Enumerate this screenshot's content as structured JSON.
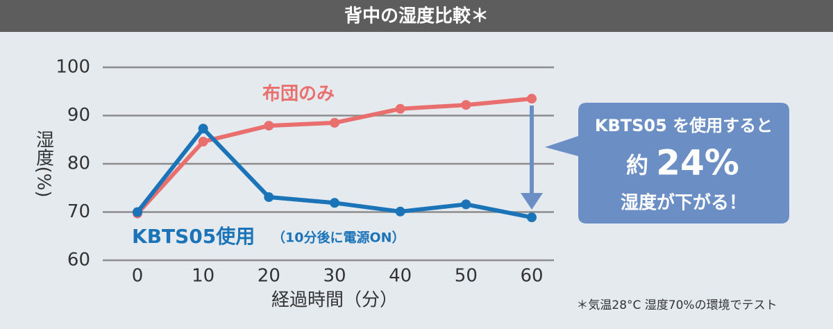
{
  "chart_data": {
    "type": "line",
    "title": "背中の湿度比較＊",
    "ylabel": "湿度(%)",
    "xlabel": "経過時間（分）",
    "x": [
      0,
      10,
      20,
      30,
      40,
      50,
      60
    ],
    "xlim": [
      0,
      60
    ],
    "xticks": [
      0,
      10,
      20,
      30,
      40,
      50,
      60
    ],
    "ylim": [
      60,
      100
    ],
    "yticks": [
      60,
      70,
      80,
      90,
      100
    ],
    "grid": true,
    "series": [
      {
        "name": "布団のみ",
        "color": "#e96f6f",
        "values": [
          69.7,
          84.6,
          87.9,
          88.5,
          91.4,
          92.2,
          93.5
        ]
      },
      {
        "name": "KBTS05使用",
        "color": "#1c74b8",
        "values": [
          70.0,
          87.3,
          73.1,
          71.9,
          70.1,
          71.6,
          68.9
        ]
      }
    ],
    "series_note": "（10分後に電源ON）",
    "callout": [
      "KBTS05 を使用すると",
      "約",
      "24%",
      "湿度が下がる！"
    ],
    "footnote": "＊気温28°C 湿度70%の環境でテスト"
  }
}
